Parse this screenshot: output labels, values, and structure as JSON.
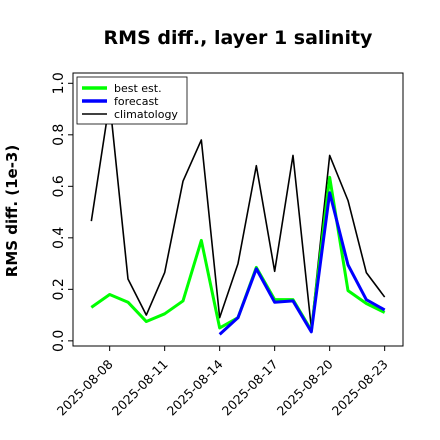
{
  "chart_data": {
    "type": "line",
    "title": "RMS diff., layer 1 salinity",
    "xlabel": "",
    "ylabel": "RMS diff. (1e-3)",
    "ylim": [
      -0.02,
      1.04
    ],
    "yticks": [
      "0.0",
      "0.2",
      "0.4",
      "0.6",
      "0.8",
      "1.0"
    ],
    "ytick_values": [
      0.0,
      0.2,
      0.4,
      0.6,
      0.8,
      1.0
    ],
    "x": [
      "2025-08-07",
      "2025-08-08",
      "2025-08-09",
      "2025-08-10",
      "2025-08-11",
      "2025-08-12",
      "2025-08-13",
      "2025-08-14",
      "2025-08-15",
      "2025-08-16",
      "2025-08-17",
      "2025-08-18",
      "2025-08-19",
      "2025-08-20",
      "2025-08-21",
      "2025-08-22",
      "2025-08-23"
    ],
    "xlim": [
      "2025-08-06",
      "2025-08-24"
    ],
    "xticks": [
      "2025-08-08",
      "2025-08-11",
      "2025-08-14",
      "2025-08-17",
      "2025-08-20",
      "2025-08-23"
    ],
    "highlight_tick": "2025-08-14",
    "highlight_color": "#228b22",
    "legend_position": "top-left",
    "grid": false,
    "series": [
      {
        "name": "best est.",
        "color": "#00ff00",
        "values": [
          0.13,
          0.18,
          0.15,
          0.075,
          0.105,
          0.155,
          0.39,
          0.05,
          0.09,
          0.285,
          0.16,
          0.16,
          0.04,
          0.635,
          0.195,
          0.145,
          0.11
        ]
      },
      {
        "name": "forecast",
        "color": "#0000ff",
        "values": [
          null,
          null,
          null,
          null,
          null,
          null,
          null,
          0.025,
          0.09,
          0.28,
          0.15,
          0.155,
          0.035,
          0.575,
          0.295,
          0.16,
          0.12
        ]
      },
      {
        "name": "climatology",
        "color": "#000000",
        "values": [
          0.465,
          0.93,
          0.24,
          0.1,
          0.265,
          0.62,
          0.78,
          0.09,
          0.3,
          0.68,
          0.27,
          0.72,
          0.05,
          0.72,
          0.545,
          0.265,
          0.17
        ]
      }
    ]
  }
}
